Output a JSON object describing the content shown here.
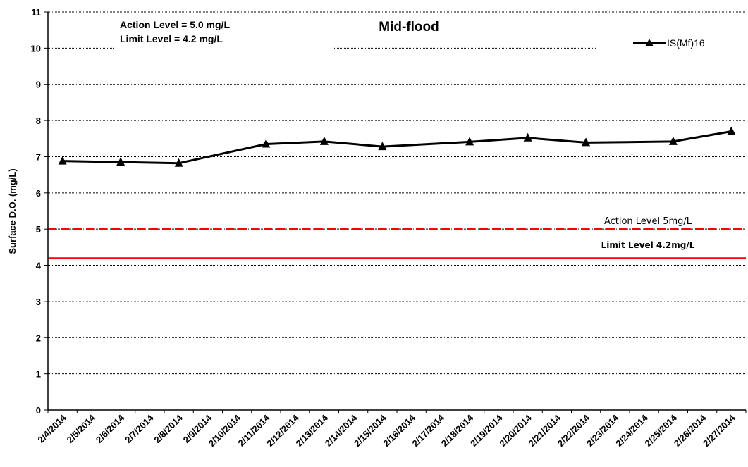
{
  "chart_data": {
    "type": "line",
    "title": "Mid-flood",
    "ylabel": "Surface D.O. (mg/L)",
    "xlabel": "",
    "ylim": [
      0,
      11
    ],
    "yticks": [
      0,
      1,
      2,
      3,
      4,
      5,
      6,
      7,
      8,
      9,
      10,
      11
    ],
    "categories": [
      "2/4/2014",
      "2/5/2014",
      "2/6/2014",
      "2/7/2014",
      "2/8/2014",
      "2/9/2014",
      "2/10/2014",
      "2/11/2014",
      "2/12/2014",
      "2/13/2014",
      "2/14/2014",
      "2/15/2014",
      "2/16/2014",
      "2/17/2014",
      "2/18/2014",
      "2/19/2014",
      "2/20/2014",
      "2/21/2014",
      "2/22/2014",
      "2/23/2014",
      "2/24/2014",
      "2/25/2014",
      "2/26/2014",
      "2/27/2014"
    ],
    "series": [
      {
        "name": "IS(Mf)16",
        "color": "#000000",
        "marker": "triangle",
        "points": [
          {
            "x": "2/4/2014",
            "y": 6.88
          },
          {
            "x": "2/6/2014",
            "y": 6.85
          },
          {
            "x": "2/8/2014",
            "y": 6.82
          },
          {
            "x": "2/11/2014",
            "y": 7.35
          },
          {
            "x": "2/13/2014",
            "y": 7.42
          },
          {
            "x": "2/15/2014",
            "y": 7.28
          },
          {
            "x": "2/18/2014",
            "y": 7.41
          },
          {
            "x": "2/20/2014",
            "y": 7.52
          },
          {
            "x": "2/22/2014",
            "y": 7.39
          },
          {
            "x": "2/25/2014",
            "y": 7.42
          },
          {
            "x": "2/27/2014",
            "y": 7.7
          }
        ]
      }
    ],
    "reference_lines": [
      {
        "label": "Action Level 5mg/L",
        "y": 5.0,
        "color": "#ff0000",
        "style": "dashed"
      },
      {
        "label": "Limit Level 4.2mg/L",
        "y": 4.2,
        "color": "#ff0000",
        "style": "solid"
      }
    ],
    "notes": [
      "Action Level = 5.0 mg/L",
      "Limit Level = 4.2 mg/L"
    ],
    "legend": {
      "position": "top-right"
    },
    "grid": "horizontal-dotted"
  }
}
